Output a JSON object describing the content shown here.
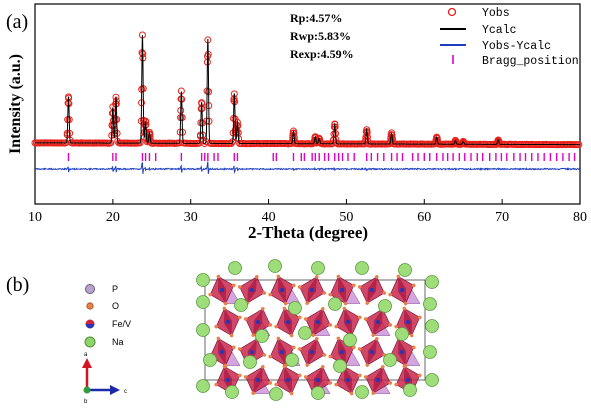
{
  "panel_a_label": "(a)",
  "panel_b_label": "(b)",
  "chart_data": {
    "type": "line",
    "xlabel": "2-Theta (degree)",
    "ylabel": "Intensity (a.u.)",
    "xlim": [
      10,
      80
    ],
    "x_ticks": [
      "10",
      "20",
      "30",
      "40",
      "50",
      "60",
      "70",
      "80"
    ],
    "grid": false,
    "legend_position": "top-right",
    "annotations": [
      "Rp:4.57%",
      "Rwp:5.83%",
      "Rexp:4.59%"
    ],
    "legend": [
      {
        "label": "Yobs",
        "marker": "open-circle",
        "color": "#e8201a"
      },
      {
        "label": "Ycalc",
        "marker": "line",
        "color": "#000000"
      },
      {
        "label": "Yobs-Ycalc",
        "marker": "line",
        "color": "#1f3fbf"
      },
      {
        "label": "Bragg_position",
        "marker": "tick",
        "color": "#e000c0"
      }
    ],
    "background": {
      "start": 72,
      "end": 62
    },
    "peaks": [
      {
        "x": 14.3,
        "height": 260
      },
      {
        "x": 20.0,
        "height": 200
      },
      {
        "x": 20.4,
        "height": 260
      },
      {
        "x": 23.8,
        "height": 600
      },
      {
        "x": 24.2,
        "height": 120
      },
      {
        "x": 24.7,
        "height": 60
      },
      {
        "x": 28.8,
        "height": 290
      },
      {
        "x": 31.4,
        "height": 230
      },
      {
        "x": 32.2,
        "height": 580
      },
      {
        "x": 35.6,
        "height": 280
      },
      {
        "x": 36.0,
        "height": 120
      },
      {
        "x": 43.2,
        "height": 70
      },
      {
        "x": 46.0,
        "height": 40
      },
      {
        "x": 46.5,
        "height": 30
      },
      {
        "x": 48.5,
        "height": 110
      },
      {
        "x": 52.6,
        "height": 80
      },
      {
        "x": 55.8,
        "height": 60
      },
      {
        "x": 61.6,
        "height": 40
      },
      {
        "x": 64.0,
        "height": 20
      },
      {
        "x": 65.0,
        "height": 15
      },
      {
        "x": 69.5,
        "height": 25
      }
    ],
    "bragg_positions": [
      14.3,
      20.0,
      20.4,
      23.8,
      24.2,
      24.7,
      25.5,
      28.8,
      31.4,
      31.8,
      32.2,
      33.0,
      33.5,
      35.6,
      36.0,
      40.6,
      41.0,
      43.2,
      44.2,
      44.6,
      45.6,
      46.0,
      46.5,
      47.2,
      47.7,
      48.5,
      49.0,
      49.5,
      50.2,
      51.0,
      52.6,
      53.2,
      54.0,
      54.8,
      55.8,
      56.5,
      57.2,
      58.5,
      59.2,
      60.0,
      60.7,
      61.6,
      62.4,
      63.0,
      63.7,
      64.5,
      65.2,
      66.0,
      66.8,
      67.5,
      68.4,
      69.2,
      69.9,
      70.6,
      71.5,
      72.3,
      73.0,
      73.8,
      74.6,
      75.4,
      76.2,
      77.0,
      77.8,
      78.6,
      79.3
    ]
  },
  "structure_legend": [
    {
      "label": "P",
      "color": "#b9a4c9"
    },
    {
      "label": "O",
      "color": "#e8804a"
    },
    {
      "label": "Fe/V",
      "color": "#d0263a"
    },
    {
      "label": "Na",
      "color": "#8fd56a"
    }
  ],
  "axes_labels": {
    "a": "a",
    "c": "c",
    "b": "b"
  },
  "structure": {
    "polyhedron_color": "#c8274e",
    "phosphate_color": "#c98fd6",
    "na_color": "#9fdc7a",
    "o_color": "#e8804a"
  }
}
